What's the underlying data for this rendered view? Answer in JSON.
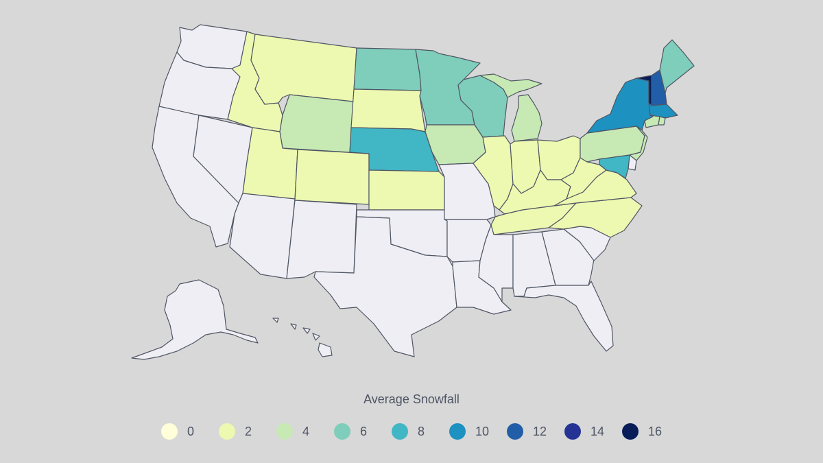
{
  "legend": {
    "title": "Average Snowfall",
    "items": [
      {
        "label": "0",
        "value": 0,
        "color": "#ffffd9"
      },
      {
        "label": "2",
        "value": 2,
        "color": "#edf8b1"
      },
      {
        "label": "4",
        "value": 4,
        "color": "#c7e9b4"
      },
      {
        "label": "6",
        "value": 6,
        "color": "#7fcdbb"
      },
      {
        "label": "8",
        "value": 8,
        "color": "#41b6c4"
      },
      {
        "label": "10",
        "value": 10,
        "color": "#1d91c0"
      },
      {
        "label": "12",
        "value": 12,
        "color": "#225ea8"
      },
      {
        "label": "14",
        "value": 14,
        "color": "#253494"
      },
      {
        "label": "16",
        "value": 16,
        "color": "#081d58"
      }
    ]
  },
  "colors": {
    "background": "#d8d8d8",
    "no_data": "#eeeef4",
    "border": "#4f5563",
    "text": "#4d5564"
  },
  "states": {
    "WA": {
      "name": "Washington",
      "bin": null
    },
    "OR": {
      "name": "Oregon",
      "bin": null
    },
    "CA": {
      "name": "California",
      "bin": null
    },
    "NV": {
      "name": "Nevada",
      "bin": null
    },
    "ID": {
      "name": "Idaho",
      "bin": 2
    },
    "MT": {
      "name": "Montana",
      "bin": 2
    },
    "WY": {
      "name": "Wyoming",
      "bin": 4
    },
    "UT": {
      "name": "Utah",
      "bin": 2
    },
    "AZ": {
      "name": "Arizona",
      "bin": null
    },
    "CO": {
      "name": "Colorado",
      "bin": 2
    },
    "NM": {
      "name": "New Mexico",
      "bin": null
    },
    "ND": {
      "name": "North Dakota",
      "bin": 6
    },
    "SD": {
      "name": "South Dakota",
      "bin": 2
    },
    "NE": {
      "name": "Nebraska",
      "bin": 8
    },
    "KS": {
      "name": "Kansas",
      "bin": 2
    },
    "OK": {
      "name": "Oklahoma",
      "bin": null
    },
    "TX": {
      "name": "Texas",
      "bin": null
    },
    "MN": {
      "name": "Minnesota",
      "bin": 6
    },
    "IA": {
      "name": "Iowa",
      "bin": 4
    },
    "MO": {
      "name": "Missouri",
      "bin": null
    },
    "AR": {
      "name": "Arkansas",
      "bin": null
    },
    "LA": {
      "name": "Louisiana",
      "bin": null
    },
    "WI": {
      "name": "Wisconsin",
      "bin": 6
    },
    "IL": {
      "name": "Illinois",
      "bin": 2
    },
    "MI": {
      "name": "Michigan",
      "bin": 4
    },
    "IN": {
      "name": "Indiana",
      "bin": 2
    },
    "OH": {
      "name": "Ohio",
      "bin": 2
    },
    "KY": {
      "name": "Kentucky",
      "bin": 2
    },
    "TN": {
      "name": "Tennessee",
      "bin": 2
    },
    "MS": {
      "name": "Mississippi",
      "bin": null
    },
    "AL": {
      "name": "Alabama",
      "bin": null
    },
    "GA": {
      "name": "Georgia",
      "bin": null
    },
    "FL": {
      "name": "Florida",
      "bin": null
    },
    "SC": {
      "name": "South Carolina",
      "bin": null
    },
    "NC": {
      "name": "North Carolina",
      "bin": 2
    },
    "VA": {
      "name": "Virginia",
      "bin": 2
    },
    "WV": {
      "name": "West Virginia",
      "bin": 2
    },
    "PA": {
      "name": "Pennsylvania",
      "bin": 4
    },
    "NY": {
      "name": "New York",
      "bin": 10
    },
    "VT": {
      "name": "Vermont",
      "bin": 16
    },
    "NH": {
      "name": "New Hampshire",
      "bin": 12
    },
    "ME": {
      "name": "Maine",
      "bin": 6
    },
    "MA": {
      "name": "Massachusetts",
      "bin": 10
    },
    "CT": {
      "name": "Connecticut",
      "bin": 4
    },
    "RI": {
      "name": "Rhode Island",
      "bin": 4
    },
    "NJ": {
      "name": "New Jersey",
      "bin": 4
    },
    "DE": {
      "name": "Delaware",
      "bin": null
    },
    "MD": {
      "name": "Maryland",
      "bin": 8
    },
    "AK": {
      "name": "Alaska",
      "bin": null
    },
    "HI": {
      "name": "Hawaii",
      "bin": null
    }
  }
}
